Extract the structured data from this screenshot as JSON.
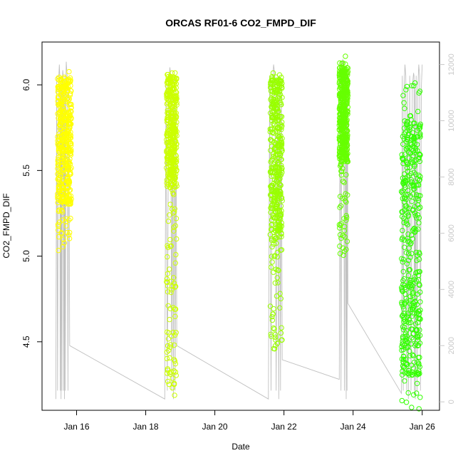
{
  "chart_data": {
    "type": "scatter",
    "title": "ORCAS RF01-6 CO2_FMPD_DIF",
    "xlabel": "Date",
    "ylabel": "CO2_FMPD_DIF",
    "x_ticks": [
      "Jan 16",
      "Jan 18",
      "Jan 20",
      "Jan 22",
      "Jan 24",
      "Jan 26"
    ],
    "x_tick_days": [
      16,
      18,
      20,
      22,
      24,
      26
    ],
    "xlim_days": [
      15.0,
      26.5
    ],
    "y_ticks": [
      "4.5",
      "5.0",
      "5.5",
      "6.0"
    ],
    "y_tick_values": [
      4.5,
      5.0,
      5.5,
      6.0
    ],
    "ylim": [
      4.1,
      6.25
    ],
    "y2_ticks": [
      "0",
      "2000",
      "4000",
      "6000",
      "8000",
      "10000",
      "12000"
    ],
    "y2_tick_values": [
      0,
      2000,
      4000,
      6000,
      8000,
      10000,
      12000
    ],
    "y2lim": [
      -300,
      12800
    ],
    "y2_color": "#c8c8c8",
    "series": [
      {
        "color": "#ffff00",
        "x_range": [
          15.45,
          15.85
        ],
        "y_min": 5.02,
        "y_max": 6.08,
        "dense_min": 5.3,
        "dense_max": 6.05
      },
      {
        "color": "#ccff00",
        "x_range": [
          18.6,
          18.9
        ],
        "y_min": 4.18,
        "y_max": 6.08,
        "dense_min": 5.4,
        "dense_max": 6.05
      },
      {
        "color": "#99ff00",
        "x_range": [
          21.6,
          21.95
        ],
        "y_min": 4.45,
        "y_max": 6.07,
        "dense_min": 5.1,
        "dense_max": 6.05
      },
      {
        "color": "#66ff00",
        "x_range": [
          23.6,
          23.85
        ],
        "y_min": 4.97,
        "y_max": 6.17,
        "dense_min": 5.55,
        "dense_max": 6.1
      },
      {
        "color": "#33ff00",
        "x_range": [
          25.4,
          25.95
        ],
        "y_min": 4.1,
        "y_max": 6.02,
        "dense_min": 4.3,
        "dense_max": 5.8
      }
    ],
    "altitude_line": {
      "color": "#c0c0c0",
      "description_points": [
        [
          15.4,
          100
        ],
        [
          15.5,
          12000
        ],
        [
          15.55,
          100
        ],
        [
          15.6,
          11800
        ],
        [
          15.65,
          100
        ],
        [
          15.7,
          12100
        ],
        [
          15.8,
          2000
        ],
        [
          18.55,
          100
        ],
        [
          18.7,
          11900
        ],
        [
          18.8,
          100
        ],
        [
          18.9,
          2000
        ],
        [
          21.55,
          100
        ],
        [
          21.7,
          12000
        ],
        [
          21.85,
          100
        ],
        [
          21.95,
          1500
        ],
        [
          23.6,
          800
        ],
        [
          23.7,
          12200
        ],
        [
          23.8,
          100
        ],
        [
          23.85,
          3500
        ],
        [
          25.4,
          300
        ],
        [
          25.5,
          12000
        ],
        [
          25.6,
          100
        ],
        [
          25.75,
          11700
        ],
        [
          25.8,
          100
        ],
        [
          25.9,
          12000
        ],
        [
          26.0,
          12000
        ]
      ]
    }
  }
}
